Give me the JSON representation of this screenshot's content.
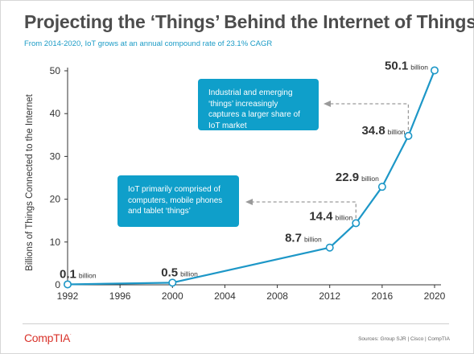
{
  "header": {
    "title": "Projecting the ‘Things’ Behind the Internet of Things",
    "subtitle": "From 2014-2020, IoT grows at an annual compound rate of 23.1% CAGR"
  },
  "callouts": {
    "top": "Industrial and emerging ‘things’ increasingly captures a larger share of IoT market",
    "bottom": "IoT primarily comprised of computers, mobile phones and tablet ‘things’"
  },
  "footer": {
    "logo": "CompTIA",
    "sources": "Sources: Group SJR | Cisco | CompTIA"
  },
  "colors": {
    "line": "#1d97c7",
    "accent": "#0f9fca",
    "title": "#4d4d4d",
    "logo": "#d9332b"
  },
  "chart_data": {
    "type": "line",
    "ylabel": "Billions of Things Connected to the Internet",
    "xlabel": "",
    "xlim": [
      1992,
      2020
    ],
    "ylim": [
      0,
      50
    ],
    "x_ticks": [
      1992,
      1996,
      2000,
      2004,
      2008,
      2012,
      2016,
      2020
    ],
    "y_ticks": [
      0,
      10,
      20,
      30,
      40,
      50
    ],
    "grid": false,
    "unit_label": "billion",
    "series": [
      {
        "points": [
          {
            "x": 1992,
            "y": 0.1,
            "label": "0.1"
          },
          {
            "x": 2000,
            "y": 0.5,
            "label": "0.5"
          },
          {
            "x": 2012,
            "y": 8.7,
            "label": "8.7"
          },
          {
            "x": 2014,
            "y": 14.4,
            "label": "14.4"
          },
          {
            "x": 2016,
            "y": 22.9,
            "label": "22.9"
          },
          {
            "x": 2018,
            "y": 34.8,
            "label": "34.8"
          },
          {
            "x": 2020,
            "y": 50.1,
            "label": "50.1"
          }
        ]
      }
    ]
  }
}
